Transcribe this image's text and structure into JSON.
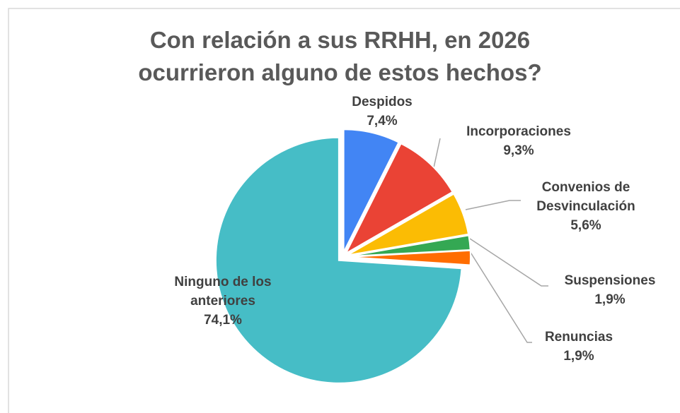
{
  "chart_data": {
    "type": "pie",
    "title": "Con relación a sus RRHH, en 2026 ocurrieron alguno de estos hechos?",
    "categories": [
      "Despidos",
      "Incorporaciones",
      "Convenios de Desvinculación",
      "Suspensiones",
      "Renuncias",
      "Ninguno de los anteriores"
    ],
    "values": [
      7.4,
      9.3,
      5.6,
      1.9,
      1.9,
      74.1
    ],
    "value_labels": [
      "7,4%",
      "9,3%",
      "5,6%",
      "1,9%",
      "1,9%",
      "74,1%"
    ],
    "colors": [
      "#4285f4",
      "#ea4335",
      "#fbbc04",
      "#34a853",
      "#ff6d01",
      "#46bdc6"
    ]
  }
}
